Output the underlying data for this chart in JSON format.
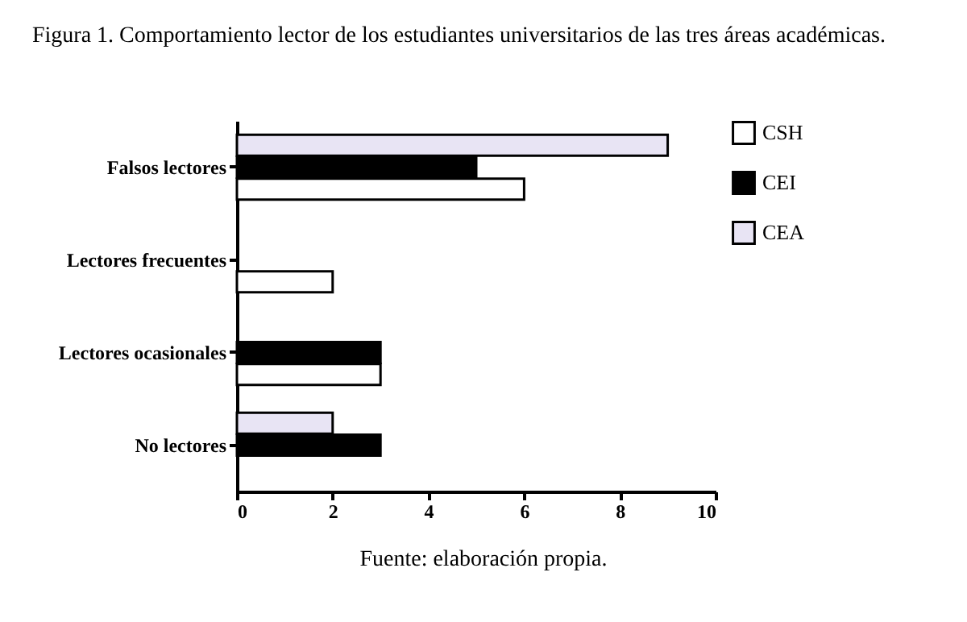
{
  "chart_data": {
    "type": "bar",
    "orientation": "horizontal",
    "title": "Figura 1. Comportamiento lector de los estudiantes universitarios de las tres áreas académicas.",
    "categories": [
      "Falsos lectores",
      "Lectores frecuentes",
      "Lectores ocasionales",
      "No lectores"
    ],
    "series": [
      {
        "name": "CSH",
        "color": "#ffffff",
        "values": [
          6,
          2,
          3,
          null
        ]
      },
      {
        "name": "CEI",
        "color": "#000000",
        "values": [
          5,
          null,
          3,
          3
        ]
      },
      {
        "name": "CEA",
        "color": "#e8e4f4",
        "values": [
          9,
          null,
          null,
          2
        ]
      }
    ],
    "xlim": [
      0,
      10
    ],
    "xticks": [
      0,
      2,
      4,
      6,
      8,
      10
    ],
    "grid": false,
    "legend": "top right",
    "annotations": [
      "Fuente: elaboración propia."
    ]
  }
}
